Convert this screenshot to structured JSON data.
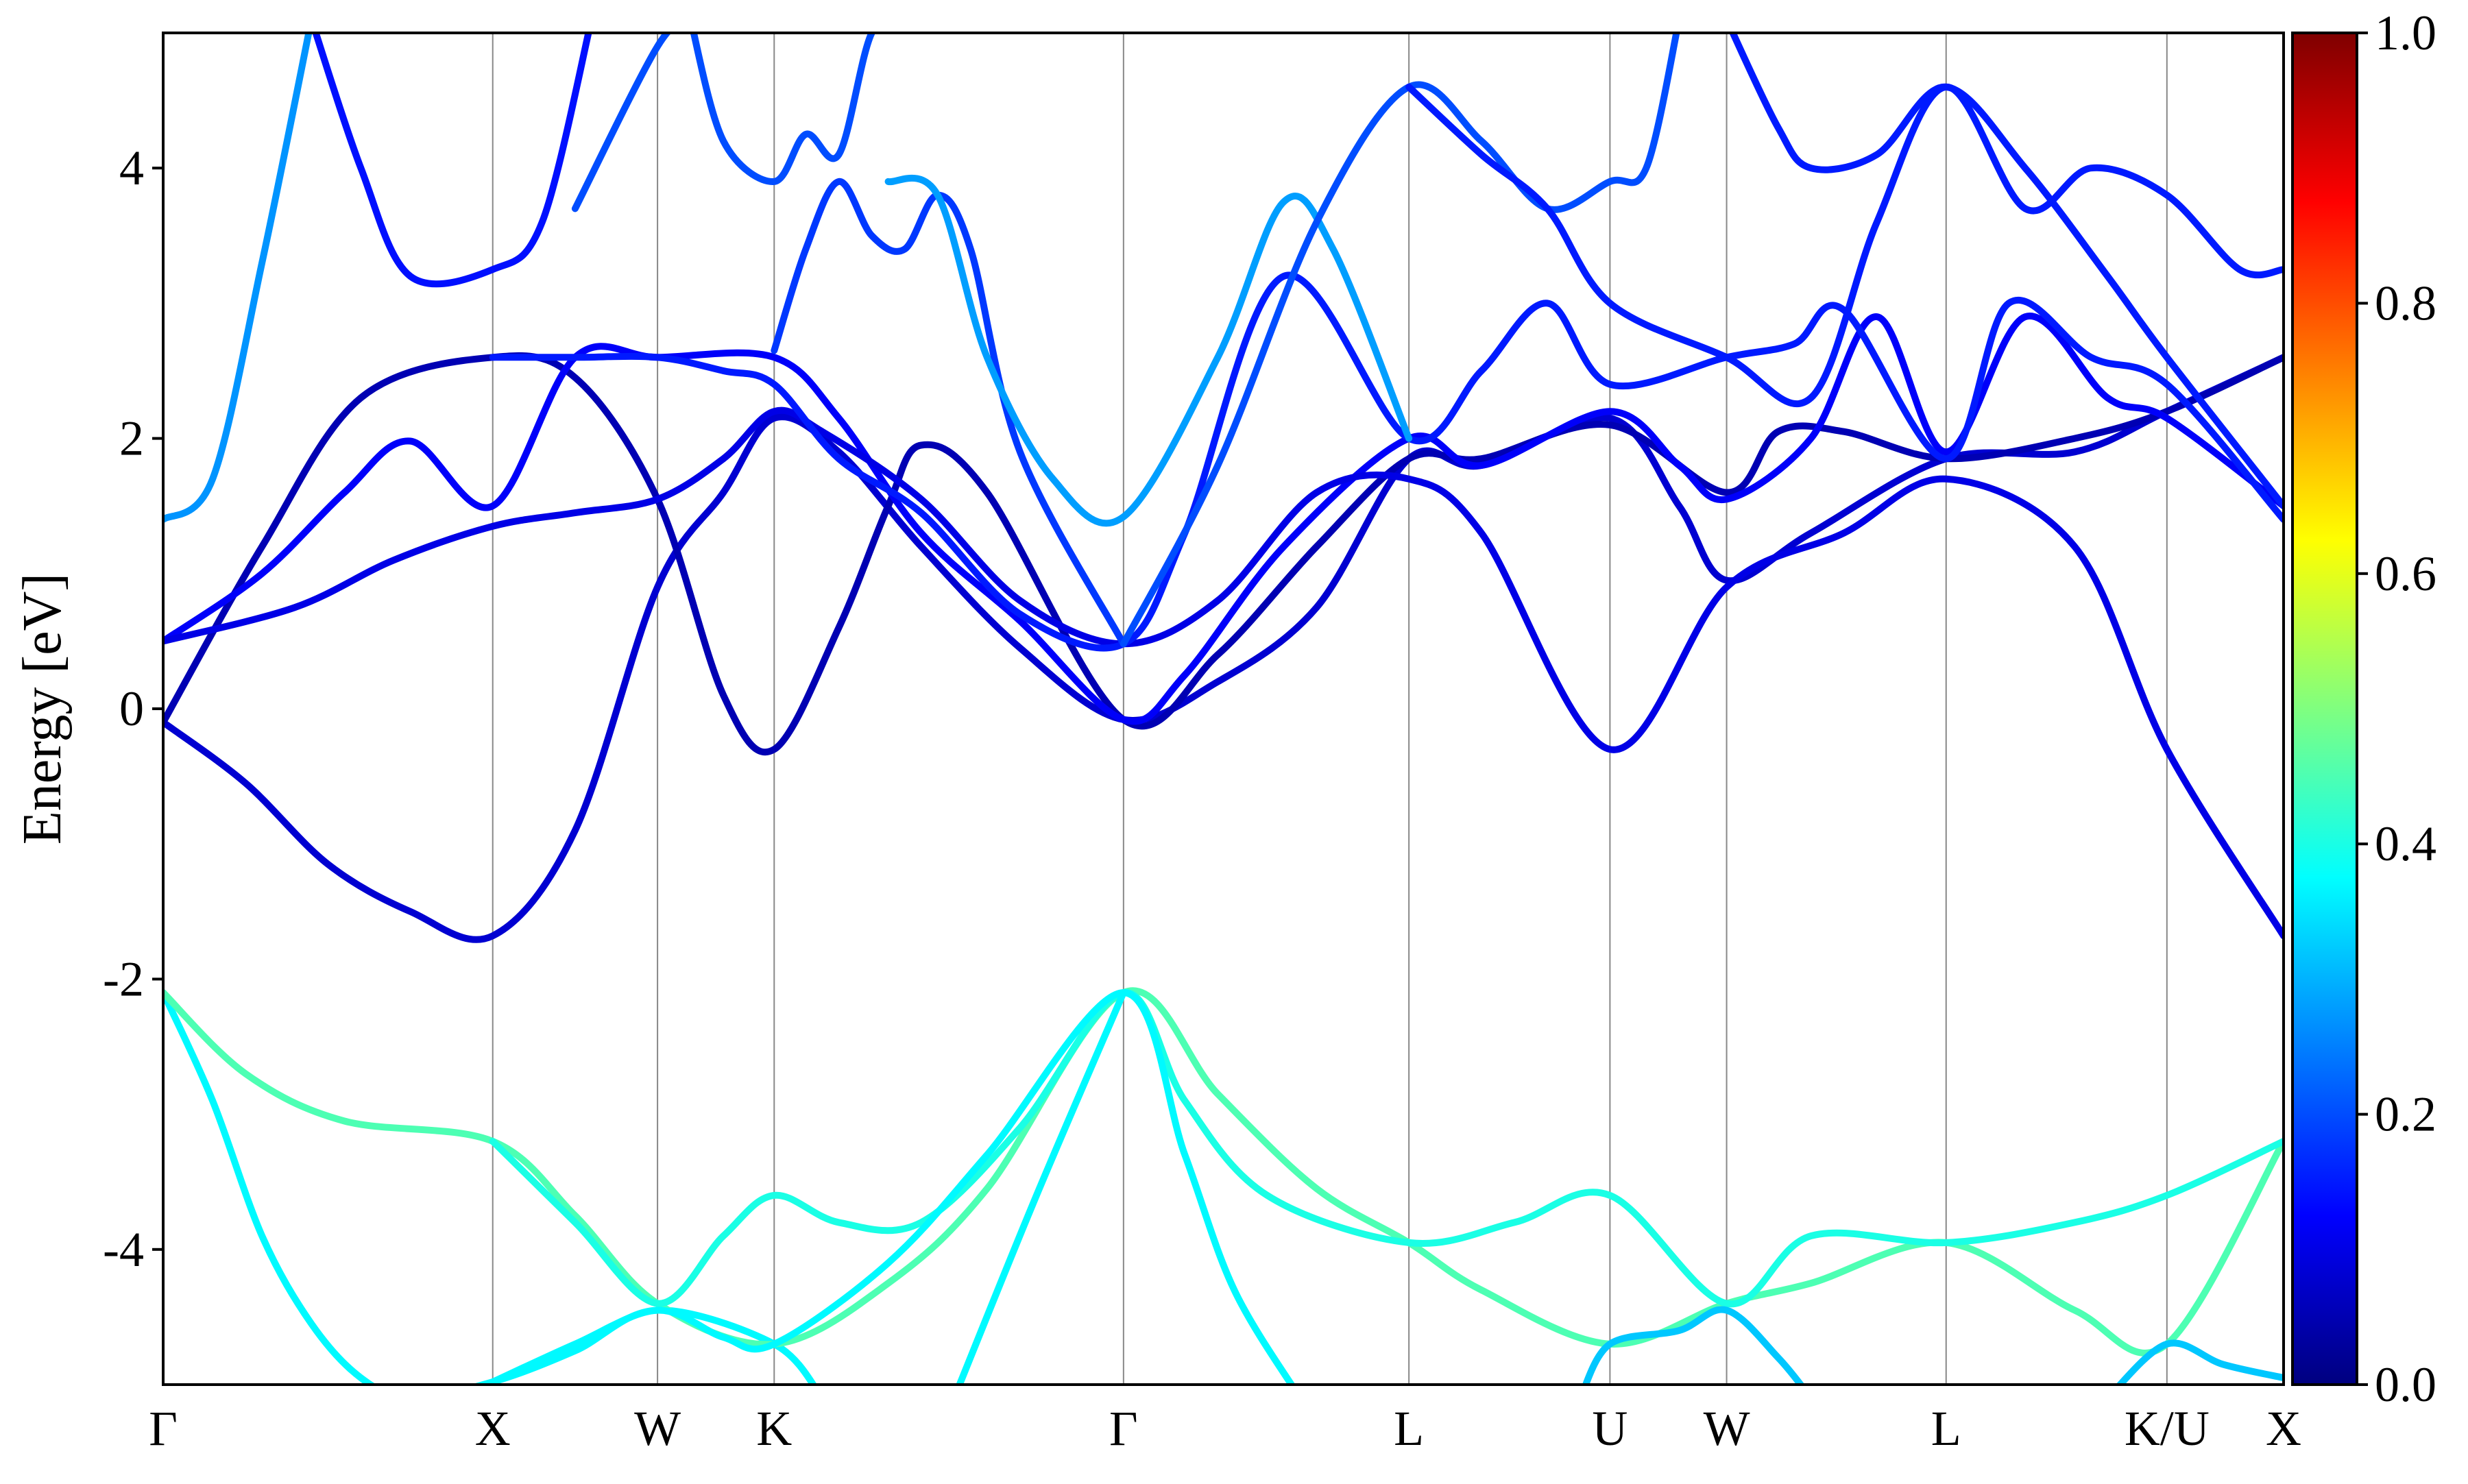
{
  "chart_data": {
    "type": "line",
    "title": "",
    "xlabel": "",
    "ylabel": "Energy [eV]",
    "ylim": [
      -5,
      5
    ],
    "yticks": [
      -4,
      -2,
      0,
      2,
      4
    ],
    "ytick_labels": [
      "-4",
      "-2",
      "0",
      "2",
      "4"
    ],
    "grid": "vertical lines at high-symmetry points",
    "kpath_positions": [
      0,
      1,
      1.5,
      1.854,
      2.914,
      3.78,
      4.39,
      4.744,
      5.41,
      6.08,
      6.434
    ],
    "kpath_labels": [
      "Γ",
      "X",
      "W",
      "K",
      "Γ",
      "L",
      "U",
      "W",
      "L",
      "K/U",
      "X"
    ],
    "colorbar": {
      "colormap": "jet",
      "range": [
        0.0,
        1.0
      ],
      "ticks": [
        "0.0",
        "0.2",
        "0.4",
        "0.6",
        "0.8",
        "1.0"
      ]
    },
    "series": [
      {
        "color_value": 0.37,
        "points": [
          [
            0,
            -2.1
          ],
          [
            0.15,
            -2.9
          ],
          [
            0.3,
            -3.9
          ],
          [
            0.45,
            -4.55
          ],
          [
            0.6,
            -4.95
          ],
          [
            0.75,
            -5.1
          ],
          [
            1.0,
            -4.98
          ],
          [
            1.25,
            -4.75
          ],
          [
            1.5,
            -4.45
          ],
          [
            1.854,
            -4.7
          ],
          [
            2.0,
            -5.1
          ]
        ]
      },
      {
        "color_value": 0.45,
        "points": [
          [
            0,
            -2.1
          ],
          [
            0.25,
            -2.7
          ],
          [
            0.55,
            -3.05
          ],
          [
            1.0,
            -3.2
          ],
          [
            1.25,
            -3.75
          ],
          [
            1.5,
            -4.4
          ],
          [
            1.854,
            -4.7
          ],
          [
            2.2,
            -4.25
          ],
          [
            2.5,
            -3.55
          ],
          [
            2.914,
            -2.1
          ],
          [
            3.2,
            -2.85
          ],
          [
            3.5,
            -3.55
          ],
          [
            3.78,
            -3.95
          ],
          [
            4.0,
            -4.3
          ],
          [
            4.39,
            -4.7
          ],
          [
            4.744,
            -4.4
          ],
          [
            5.0,
            -4.25
          ],
          [
            5.41,
            -3.95
          ],
          [
            5.8,
            -4.45
          ],
          [
            6.08,
            -4.7
          ],
          [
            6.434,
            -3.2
          ]
        ]
      },
      {
        "color_value": 0.4,
        "points": [
          [
            1.0,
            -3.2
          ],
          [
            1.25,
            -3.8
          ],
          [
            1.5,
            -4.4
          ],
          [
            1.7,
            -3.9
          ],
          [
            1.854,
            -3.6
          ],
          [
            2.05,
            -3.8
          ],
          [
            2.3,
            -3.8
          ],
          [
            2.6,
            -3.1
          ],
          [
            2.914,
            -2.1
          ],
          [
            3.1,
            -2.9
          ],
          [
            3.35,
            -3.6
          ],
          [
            3.78,
            -3.95
          ],
          [
            4.1,
            -3.8
          ],
          [
            4.39,
            -3.6
          ],
          [
            4.744,
            -4.4
          ],
          [
            5.0,
            -3.9
          ],
          [
            5.41,
            -3.95
          ],
          [
            5.8,
            -3.8
          ],
          [
            6.08,
            -3.6
          ],
          [
            6.434,
            -3.2
          ]
        ]
      },
      {
        "color_value": 0.37,
        "points": [
          [
            1.0,
            -4.98
          ],
          [
            1.25,
            -4.7
          ],
          [
            1.5,
            -4.45
          ],
          [
            1.7,
            -4.65
          ],
          [
            1.854,
            -4.7
          ],
          [
            2.2,
            -4.1
          ],
          [
            2.5,
            -3.3
          ],
          [
            2.914,
            -2.1
          ],
          [
            3.1,
            -3.3
          ],
          [
            3.25,
            -4.3
          ],
          [
            3.45,
            -5.1
          ]
        ]
      },
      {
        "color_value": 0.37,
        "points": [
          [
            2.4,
            -5.1
          ],
          [
            2.65,
            -3.6
          ],
          [
            2.914,
            -2.1
          ]
        ]
      },
      {
        "color_value": 0.32,
        "points": [
          [
            4.3,
            -5.1
          ],
          [
            4.39,
            -4.7
          ],
          [
            4.6,
            -4.6
          ],
          [
            4.744,
            -4.45
          ],
          [
            4.9,
            -4.8
          ],
          [
            5.0,
            -5.1
          ]
        ]
      },
      {
        "color_value": 0.32,
        "points": [
          [
            5.9,
            -5.1
          ],
          [
            6.08,
            -4.7
          ],
          [
            6.25,
            -4.85
          ],
          [
            6.434,
            -4.95
          ]
        ]
      },
      {
        "color_value": 0.08,
        "points": [
          [
            0,
            -0.1
          ],
          [
            0.25,
            -0.55
          ],
          [
            0.5,
            -1.15
          ],
          [
            0.75,
            -1.5
          ],
          [
            1.0,
            -1.68
          ],
          [
            1.25,
            -0.9
          ],
          [
            1.5,
            0.9
          ],
          [
            1.7,
            1.6
          ],
          [
            1.854,
            2.15
          ],
          [
            2.05,
            1.9
          ],
          [
            2.3,
            1.2
          ],
          [
            2.6,
            0.45
          ],
          [
            2.914,
            -0.08
          ],
          [
            3.2,
            0.2
          ],
          [
            3.5,
            0.75
          ],
          [
            3.78,
            1.85
          ],
          [
            4.0,
            1.8
          ],
          [
            4.39,
            2.15
          ],
          [
            4.6,
            1.5
          ],
          [
            4.744,
            0.95
          ],
          [
            5.0,
            1.3
          ],
          [
            5.41,
            1.85
          ],
          [
            5.8,
            1.9
          ],
          [
            6.08,
            2.2
          ],
          [
            6.434,
            2.6
          ]
        ]
      },
      {
        "color_value": 0.05,
        "points": [
          [
            0,
            -0.1
          ],
          [
            0.3,
            1.2
          ],
          [
            0.6,
            2.3
          ],
          [
            1.0,
            2.6
          ],
          [
            1.25,
            2.45
          ],
          [
            1.5,
            1.55
          ],
          [
            1.7,
            0.1
          ],
          [
            1.854,
            -0.3
          ],
          [
            2.05,
            0.6
          ],
          [
            2.2,
            1.5
          ],
          [
            2.3,
            1.95
          ],
          [
            2.5,
            1.6
          ],
          [
            2.914,
            -0.08
          ],
          [
            3.2,
            0.4
          ],
          [
            3.5,
            1.2
          ],
          [
            3.78,
            1.85
          ],
          [
            4.0,
            1.85
          ],
          [
            4.39,
            2.1
          ],
          [
            4.744,
            1.6
          ],
          [
            4.9,
            2.05
          ],
          [
            5.1,
            2.05
          ],
          [
            5.41,
            1.85
          ],
          [
            5.8,
            2.0
          ],
          [
            6.08,
            2.2
          ],
          [
            6.434,
            2.6
          ]
        ]
      },
      {
        "color_value": 0.12,
        "points": [
          [
            0,
            0.5
          ],
          [
            0.3,
            1.0
          ],
          [
            0.55,
            1.6
          ],
          [
            0.75,
            1.98
          ],
          [
            1.0,
            1.5
          ],
          [
            1.25,
            2.6
          ],
          [
            1.5,
            2.6
          ],
          [
            1.854,
            2.6
          ],
          [
            2.05,
            2.15
          ],
          [
            2.3,
            1.3
          ],
          [
            2.6,
            0.65
          ],
          [
            2.914,
            -0.08
          ],
          [
            3.1,
            0.25
          ],
          [
            3.4,
            1.2
          ],
          [
            3.78,
            2.0
          ],
          [
            4.0,
            1.8
          ],
          [
            4.39,
            2.2
          ],
          [
            4.6,
            1.8
          ],
          [
            4.744,
            1.55
          ],
          [
            5.0,
            2.0
          ],
          [
            5.2,
            2.9
          ],
          [
            5.41,
            1.9
          ],
          [
            5.65,
            2.9
          ],
          [
            5.9,
            2.3
          ],
          [
            6.08,
            2.15
          ],
          [
            6.434,
            1.5
          ]
        ]
      },
      {
        "color_value": 0.1,
        "points": [
          [
            0,
            0.5
          ],
          [
            0.4,
            0.75
          ],
          [
            0.7,
            1.1
          ],
          [
            1.0,
            1.35
          ],
          [
            1.25,
            1.45
          ],
          [
            1.5,
            1.55
          ],
          [
            1.7,
            1.85
          ],
          [
            1.854,
            2.2
          ],
          [
            2.0,
            2.05
          ],
          [
            2.3,
            1.55
          ],
          [
            2.6,
            0.8
          ],
          [
            2.914,
            0.48
          ],
          [
            3.2,
            0.8
          ],
          [
            3.5,
            1.6
          ],
          [
            3.78,
            1.7
          ],
          [
            4.0,
            1.3
          ],
          [
            4.39,
            -0.3
          ],
          [
            4.744,
            0.9
          ],
          [
            5.1,
            1.3
          ],
          [
            5.41,
            1.7
          ],
          [
            5.8,
            1.2
          ],
          [
            6.08,
            -0.3
          ],
          [
            6.434,
            -1.68
          ]
        ]
      },
      {
        "color_value": 0.15,
        "points": [
          [
            1.0,
            2.6
          ],
          [
            1.25,
            2.6
          ],
          [
            1.5,
            2.6
          ],
          [
            1.7,
            2.5
          ],
          [
            1.854,
            2.4
          ],
          [
            2.05,
            1.85
          ],
          [
            2.3,
            1.45
          ],
          [
            2.6,
            0.7
          ],
          [
            2.914,
            0.48
          ],
          [
            3.1,
            1.3
          ],
          [
            3.4,
            3.2
          ],
          [
            3.78,
            2.0
          ],
          [
            4.0,
            2.5
          ],
          [
            4.2,
            3.0
          ],
          [
            4.39,
            2.4
          ],
          [
            4.744,
            2.6
          ],
          [
            4.95,
            2.7
          ],
          [
            5.1,
            2.95
          ],
          [
            5.41,
            1.85
          ],
          [
            5.6,
            3.0
          ],
          [
            5.85,
            2.6
          ],
          [
            6.08,
            2.4
          ],
          [
            6.434,
            1.4
          ]
        ]
      },
      {
        "color_value": 0.2,
        "points": [
          [
            1.25,
            3.7
          ],
          [
            1.5,
            4.9
          ],
          [
            1.6,
            5.1
          ]
        ]
      },
      {
        "color_value": 0.14,
        "points": [
          [
            0.45,
            5.1
          ],
          [
            0.6,
            4.0
          ],
          [
            0.75,
            3.2
          ],
          [
            1.0,
            3.25
          ],
          [
            1.15,
            3.6
          ],
          [
            1.3,
            5.1
          ]
        ]
      },
      {
        "color_value": 0.2,
        "points": [
          [
            1.6,
            5.1
          ],
          [
            1.7,
            4.2
          ],
          [
            1.854,
            3.9
          ],
          [
            1.95,
            4.25
          ],
          [
            2.05,
            4.1
          ],
          [
            2.15,
            5.0
          ],
          [
            2.25,
            5.1
          ]
        ]
      },
      {
        "color_value": 0.18,
        "points": [
          [
            1.854,
            2.65
          ],
          [
            1.95,
            3.4
          ],
          [
            2.05,
            3.9
          ],
          [
            2.15,
            3.5
          ],
          [
            2.25,
            3.4
          ],
          [
            2.35,
            3.8
          ],
          [
            2.45,
            3.4
          ],
          [
            2.6,
            1.9
          ],
          [
            2.914,
            0.48
          ]
        ]
      },
      {
        "color_value": 0.27,
        "points": [
          [
            0,
            1.4
          ],
          [
            0.15,
            1.7
          ],
          [
            0.3,
            3.3
          ],
          [
            0.45,
            5.1
          ]
        ]
      },
      {
        "color_value": 0.28,
        "points": [
          [
            2.2,
            3.9
          ],
          [
            2.35,
            3.8
          ],
          [
            2.5,
            2.6
          ],
          [
            2.7,
            1.7
          ],
          [
            2.914,
            1.42
          ],
          [
            3.2,
            2.6
          ],
          [
            3.4,
            3.75
          ],
          [
            3.55,
            3.4
          ],
          [
            3.78,
            2.0
          ]
        ]
      },
      {
        "color_value": 0.2,
        "points": [
          [
            2.914,
            0.48
          ],
          [
            3.2,
            1.8
          ],
          [
            3.5,
            3.6
          ],
          [
            3.78,
            4.6
          ],
          [
            4.0,
            4.2
          ],
          [
            4.2,
            3.7
          ],
          [
            4.39,
            3.9
          ],
          [
            4.5,
            4.0
          ],
          [
            4.6,
            5.1
          ]
        ]
      },
      {
        "color_value": 0.15,
        "points": [
          [
            3.78,
            4.6
          ],
          [
            4.0,
            4.1
          ],
          [
            4.2,
            3.7
          ],
          [
            4.39,
            3.0
          ],
          [
            4.744,
            2.6
          ],
          [
            5.0,
            2.3
          ],
          [
            5.2,
            3.6
          ],
          [
            5.41,
            4.6
          ],
          [
            5.65,
            3.7
          ],
          [
            5.85,
            4.0
          ],
          [
            6.08,
            3.8
          ],
          [
            6.3,
            3.25
          ],
          [
            6.434,
            3.25
          ]
        ]
      },
      {
        "color_value": 0.15,
        "points": [
          [
            4.744,
            5.1
          ],
          [
            4.9,
            4.3
          ],
          [
            5.0,
            4.0
          ],
          [
            5.2,
            4.1
          ],
          [
            5.41,
            4.6
          ],
          [
            5.65,
            4.0
          ],
          [
            5.9,
            3.2
          ],
          [
            6.08,
            2.6
          ],
          [
            6.434,
            1.5
          ]
        ]
      }
    ]
  }
}
